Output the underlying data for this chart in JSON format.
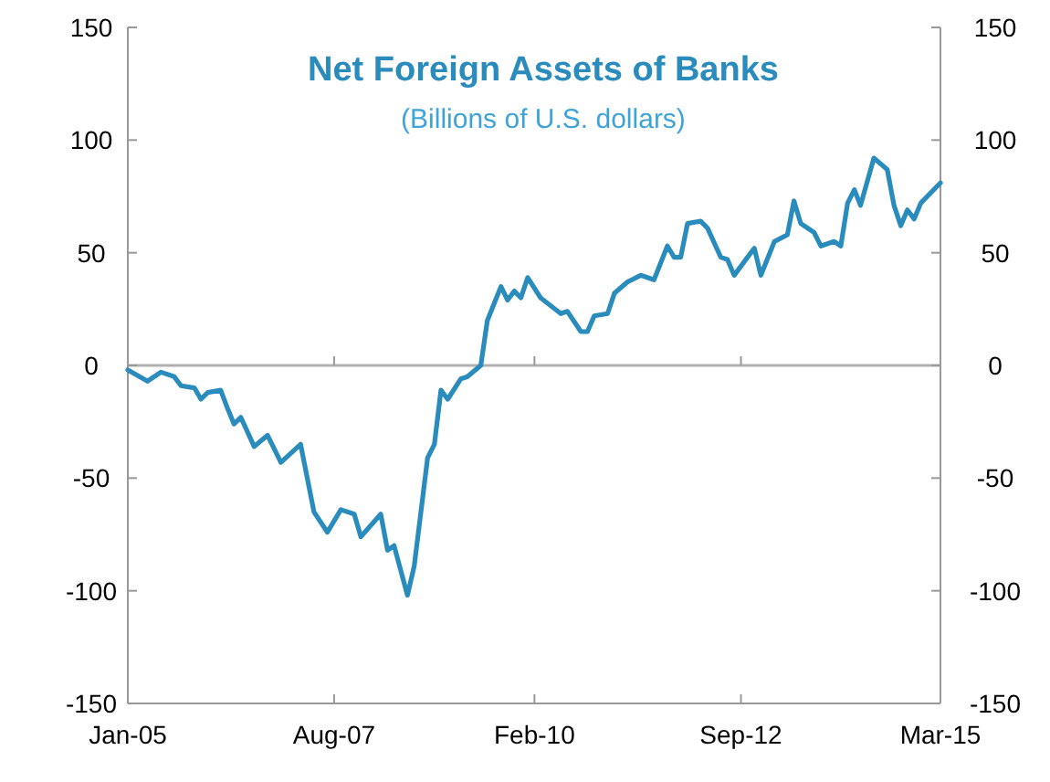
{
  "chart_data": {
    "type": "line",
    "title": "Net Foreign Assets of Banks",
    "subtitle": "(Billions of U.S. dollars)",
    "series": [
      {
        "color": "#2a8bbd",
        "x": [
          "2005-01",
          "2005-04",
          "2005-06",
          "2005-08",
          "2005-09",
          "2005-11",
          "2005-12",
          "2006-01",
          "2006-03",
          "2006-04",
          "2006-05",
          "2006-06",
          "2006-08",
          "2006-10",
          "2006-12",
          "2007-03",
          "2007-05",
          "2007-07",
          "2007-09",
          "2007-11",
          "2007-12",
          "2008-03",
          "2008-04",
          "2008-05",
          "2008-07",
          "2008-08",
          "2008-10",
          "2008-11",
          "2008-12",
          "2009-01",
          "2009-03",
          "2009-04",
          "2009-06",
          "2009-07",
          "2009-09",
          "2009-10",
          "2009-11",
          "2009-12",
          "2010-01",
          "2010-03",
          "2010-06",
          "2010-07",
          "2010-09",
          "2010-10",
          "2010-11",
          "2011-01",
          "2011-02",
          "2011-04",
          "2011-06",
          "2011-08",
          "2011-10",
          "2011-11",
          "2011-12",
          "2012-01",
          "2012-03",
          "2012-04",
          "2012-06",
          "2012-07",
          "2012-08",
          "2012-10",
          "2012-11",
          "2012-12",
          "2013-02",
          "2013-04",
          "2013-05",
          "2013-06",
          "2013-08",
          "2013-09",
          "2013-11",
          "2013-12",
          "2014-01",
          "2014-02",
          "2014-03",
          "2014-05",
          "2014-07",
          "2014-08",
          "2014-09",
          "2014-10",
          "2014-11",
          "2014-12",
          "2015-03"
        ],
        "values": [
          -2,
          -7,
          -3,
          -5,
          -9,
          -10,
          -15,
          -12,
          -11,
          -19,
          -26,
          -23,
          -36,
          -31,
          -43,
          -35,
          -65,
          -74,
          -64,
          -66,
          -76,
          -66,
          -82,
          -80,
          -102,
          -89,
          -41,
          -35,
          -11,
          -15,
          -6,
          -5,
          0,
          20,
          35,
          29,
          33,
          30,
          39,
          30,
          23,
          24,
          15,
          15,
          22,
          23,
          32,
          37,
          40,
          38,
          53,
          48,
          48,
          63,
          64,
          61,
          48,
          47,
          40,
          48,
          52,
          40,
          55,
          58,
          73,
          63,
          59,
          53,
          55,
          53,
          72,
          78,
          71,
          92,
          87,
          71,
          62,
          69,
          65,
          72,
          81
        ]
      }
    ],
    "xlim": [
      "2005-01",
      "2015-03"
    ],
    "xticks": [
      {
        "value": "2005-01",
        "label": "Jan-05"
      },
      {
        "value": "2007-08",
        "label": "Aug-07"
      },
      {
        "value": "2010-02",
        "label": "Feb-10"
      },
      {
        "value": "2012-09",
        "label": "Sep-12"
      },
      {
        "value": "2015-03",
        "label": "Mar-15"
      }
    ],
    "ylim": [
      -150,
      150
    ],
    "yticks": [
      -150,
      -100,
      -50,
      0,
      50,
      100,
      150
    ],
    "y2lim": [
      -150,
      150
    ],
    "y2ticks": [
      -150,
      -100,
      -50,
      0,
      50,
      100,
      150
    ],
    "ref_lines": [
      {
        "axis": "y",
        "value": 0,
        "color": "#b0b0b0"
      }
    ],
    "grid": false,
    "marker": "none",
    "line_style": "solid"
  }
}
